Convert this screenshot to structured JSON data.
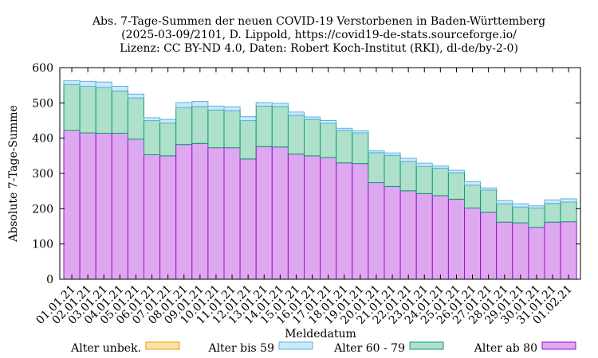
{
  "chart_data": {
    "type": "bar",
    "stacked": true,
    "title": [
      "Abs. 7-Tage-Summen der neuen COVID-19 Verstorbenen in Baden-Württemberg",
      "(2025-03-09/2101, D. Lippold, https://covid19-de-stats.sourceforge.io/",
      "Lizenz: CC BY-ND 4.0, Daten: Robert Koch-Institut (RKI), dl-de/by-2-0)"
    ],
    "xlabel": "Meldedatum",
    "ylabel": "Absolute 7-Tage-Summe",
    "ylim": [
      0,
      600
    ],
    "yticks": [
      0,
      100,
      200,
      300,
      400,
      500,
      600
    ],
    "categories": [
      "01.01.21",
      "02.01.21",
      "03.01.21",
      "04.01.21",
      "05.01.21",
      "06.01.21",
      "07.01.21",
      "08.01.21",
      "09.01.21",
      "10.01.21",
      "11.01.21",
      "12.01.21",
      "13.01.21",
      "14.01.21",
      "15.01.21",
      "16.01.21",
      "17.01.21",
      "18.01.21",
      "19.01.21",
      "20.01.21",
      "21.01.21",
      "22.01.21",
      "23.01.21",
      "24.01.21",
      "25.01.21",
      "26.01.21",
      "27.01.21",
      "28.01.21",
      "29.01.21",
      "30.01.21",
      "31.01.21",
      "01.02.21"
    ],
    "series": [
      {
        "name": "Alter ab 80",
        "fill": "#dda8f0",
        "stroke": "#9a10c8",
        "values": [
          422,
          415,
          414,
          414,
          397,
          353,
          350,
          382,
          385,
          373,
          373,
          341,
          376,
          375,
          355,
          350,
          345,
          330,
          328,
          274,
          263,
          251,
          243,
          237,
          227,
          202,
          190,
          162,
          160,
          147,
          162,
          163
        ]
      },
      {
        "name": "Alter 60 - 79",
        "fill": "#aee0cb",
        "stroke": "#149a72",
        "values": [
          130,
          132,
          130,
          120,
          117,
          97,
          93,
          105,
          105,
          107,
          105,
          109,
          115,
          115,
          110,
          103,
          97,
          92,
          87,
          85,
          88,
          83,
          77,
          78,
          75,
          65,
          63,
          52,
          45,
          55,
          53,
          56
        ]
      },
      {
        "name": "Alter bis 59",
        "fill": "#cfe8f7",
        "stroke": "#58b4e6",
        "values": [
          11,
          14,
          15,
          13,
          11,
          8,
          10,
          14,
          14,
          11,
          11,
          11,
          10,
          9,
          9,
          7,
          8,
          6,
          6,
          5,
          7,
          9,
          9,
          6,
          7,
          10,
          6,
          9,
          9,
          6,
          10,
          9
        ]
      },
      {
        "name": "Alter unbek.",
        "fill": "#fbe2a8",
        "stroke": "#e8a200",
        "values": [
          0,
          0,
          0,
          0,
          0,
          0,
          0,
          0,
          0,
          0,
          0,
          0,
          0,
          0,
          0,
          0,
          0,
          0,
          0,
          0,
          0,
          0,
          0,
          0,
          0,
          0,
          0,
          0,
          0,
          0,
          0,
          0
        ]
      }
    ],
    "legend": [
      {
        "label": "Alter unbek.",
        "series": "Alter unbek."
      },
      {
        "label": "Alter bis 59",
        "series": "Alter bis 59"
      },
      {
        "label": "Alter 60 - 79",
        "series": "Alter 60 - 79"
      },
      {
        "label": "Alter ab 80",
        "series": "Alter ab 80"
      }
    ],
    "legend_position": "bottom"
  }
}
